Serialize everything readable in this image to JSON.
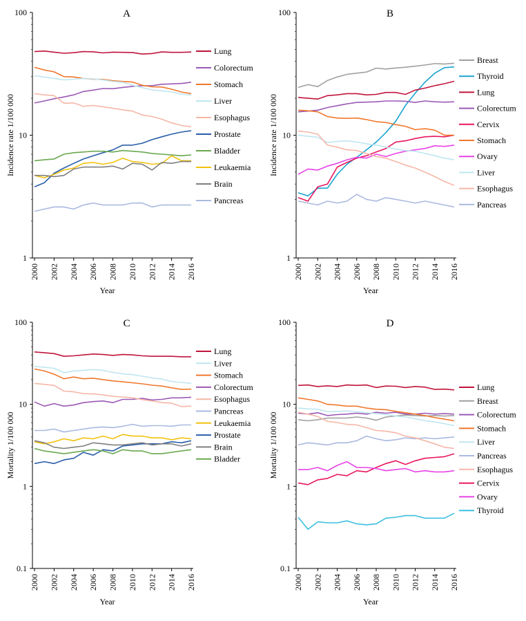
{
  "chart_data": [
    {
      "panel": "A",
      "type": "line",
      "title": "A",
      "xlabel": "Year",
      "ylabel": "Incidence rate 1/100 000",
      "yscale": "log",
      "ylim": [
        1,
        100
      ],
      "yticks": [
        "1",
        "10",
        "100"
      ],
      "xticks": [
        "2000",
        "2002",
        "2004",
        "2006",
        "2008",
        "2010",
        "2012",
        "2014",
        "2016"
      ],
      "legend_position": "right",
      "grid": false,
      "x": [
        2000,
        2001,
        2002,
        2003,
        2004,
        2005,
        2006,
        2007,
        2008,
        2009,
        2010,
        2011,
        2012,
        2013,
        2014,
        2015,
        2016
      ],
      "series": [
        {
          "name": "Lung",
          "color": "#c0143c",
          "values": [
            48,
            48.5,
            47.5,
            46.5,
            47,
            48,
            47.8,
            46.8,
            47.5,
            47.3,
            47.2,
            45.8,
            46.3,
            47.7,
            47.3,
            47.3,
            47.6
          ]
        },
        {
          "name": "Colorectum",
          "color": "#9b59b6",
          "values": [
            18.3,
            19,
            19.8,
            20.5,
            21.3,
            22.7,
            23.3,
            24,
            23.9,
            24.5,
            25,
            25.3,
            25.3,
            26,
            26.2,
            26.4,
            27
          ]
        },
        {
          "name": "Stomach",
          "color": "#f0782e",
          "values": [
            35.7,
            34,
            32.8,
            30,
            29.8,
            29,
            28.6,
            28.5,
            27.8,
            27.4,
            27.1,
            25.5,
            24.8,
            24.7,
            23.7,
            22.5,
            21.8
          ]
        },
        {
          "name": "Liver",
          "color": "#bfe6ef",
          "values": [
            30.5,
            29.8,
            29,
            28.2,
            28.6,
            29,
            28.8,
            28.2,
            27.4,
            27,
            25.5,
            24.4,
            23.4,
            23,
            22.5,
            21.6,
            21.2
          ]
        },
        {
          "name": "Esophagus",
          "color": "#f5b7a8",
          "values": [
            21.8,
            21.3,
            21,
            18.2,
            18.3,
            17.2,
            17.5,
            17,
            16.6,
            16.1,
            15.7,
            14.6,
            14.2,
            13.5,
            12.6,
            12,
            11.7
          ]
        },
        {
          "name": "Prostate",
          "color": "#2a5ea8",
          "values": [
            3.8,
            4.1,
            4.9,
            5.4,
            5.9,
            6.4,
            6.8,
            7.2,
            7.6,
            8.3,
            8.3,
            8.6,
            9.2,
            9.7,
            10.2,
            10.6,
            10.9
          ]
        },
        {
          "name": "Bladder",
          "color": "#6aa84f",
          "values": [
            6.2,
            6.3,
            6.4,
            7,
            7.2,
            7.3,
            7.4,
            7.4,
            7.3,
            7.5,
            7.4,
            7.3,
            7.1,
            7,
            6.9,
            6.8,
            6.9
          ]
        },
        {
          "name": "Leukaemia",
          "color": "#f2c10e",
          "values": [
            4.7,
            4.5,
            4.8,
            5.2,
            5.4,
            5.9,
            6,
            5.8,
            6,
            6.5,
            6.1,
            6,
            5.8,
            5.9,
            6.8,
            6.2,
            6.2
          ]
        },
        {
          "name": "Brain",
          "color": "#7f7f7f",
          "values": [
            4.7,
            4.7,
            4.6,
            4.7,
            5.3,
            5.5,
            5.5,
            5.5,
            5.6,
            5.3,
            5.9,
            5.8,
            5.2,
            6,
            5.9,
            6.1,
            6.1
          ]
        },
        {
          "name": "Pancreas",
          "color": "#aab9e0",
          "values": [
            2.4,
            2.5,
            2.6,
            2.6,
            2.5,
            2.7,
            2.8,
            2.7,
            2.7,
            2.7,
            2.8,
            2.8,
            2.6,
            2.7,
            2.7,
            2.7,
            2.7
          ]
        }
      ]
    },
    {
      "panel": "B",
      "type": "line",
      "title": "B",
      "xlabel": "Year",
      "ylabel": "Incidence rate 1/100 000",
      "yscale": "log",
      "ylim": [
        1,
        100
      ],
      "yticks": [
        "1",
        "10",
        "100"
      ],
      "xticks": [
        "2000",
        "2002",
        "2004",
        "2006",
        "2008",
        "2010",
        "2012",
        "2014",
        "2016"
      ],
      "legend_position": "right",
      "grid": false,
      "x": [
        2000,
        2001,
        2002,
        2003,
        2004,
        2005,
        2006,
        2007,
        2008,
        2009,
        2010,
        2011,
        2012,
        2013,
        2014,
        2015,
        2016
      ],
      "series": [
        {
          "name": "Breast",
          "color": "#a0a0a0",
          "values": [
            24.5,
            25.8,
            24.9,
            27.9,
            29.8,
            31.3,
            32,
            32.7,
            35.2,
            34.6,
            35.3,
            35.8,
            36.5,
            37.3,
            38.3,
            38,
            38.6
          ]
        },
        {
          "name": "Thyroid",
          "color": "#1aa3d1",
          "values": [
            3.4,
            3.2,
            3.7,
            3.7,
            4.8,
            5.8,
            6.6,
            7.6,
            8.8,
            10.5,
            13,
            17.5,
            22,
            27,
            32,
            35.5,
            36
          ]
        },
        {
          "name": "Lung",
          "color": "#c0143c",
          "values": [
            20.3,
            20,
            19.7,
            21,
            21.3,
            21.8,
            21.8,
            21.3,
            21.5,
            22.3,
            22.3,
            21.5,
            23.3,
            24.2,
            25.3,
            26.3,
            27.5
          ]
        },
        {
          "name": "Colorectum",
          "color": "#9b59b6",
          "values": [
            15.5,
            15.7,
            16,
            16.8,
            17.4,
            18,
            18.5,
            18.6,
            18.7,
            19,
            19,
            18.9,
            18.5,
            19,
            18.7,
            18.6,
            18.7
          ]
        },
        {
          "name": "Cervix",
          "color": "#e8175d",
          "values": [
            3.1,
            2.9,
            3.8,
            4,
            5.5,
            6,
            6.5,
            6.8,
            7.3,
            7.8,
            8.8,
            9,
            9.4,
            9.7,
            9.8,
            9.7,
            10
          ]
        },
        {
          "name": "Stomach",
          "color": "#f0782e",
          "values": [
            16,
            15.8,
            15.5,
            14.2,
            13.8,
            13.7,
            13.8,
            13.4,
            12.9,
            12.7,
            12.2,
            11.8,
            11.1,
            11.3,
            11,
            10,
            10
          ]
        },
        {
          "name": "Ovary",
          "color": "#e842e6",
          "values": [
            4.8,
            5.3,
            5.2,
            5.6,
            5.9,
            6.3,
            6.6,
            6.5,
            7,
            6.7,
            7.1,
            7.4,
            7.6,
            7.8,
            8.2,
            8.1,
            8.3
          ]
        },
        {
          "name": "Liver",
          "color": "#bfe6ef",
          "values": [
            10,
            9.8,
            9.6,
            8.7,
            8.9,
            9,
            8.8,
            8.5,
            8.3,
            8,
            7.7,
            7.5,
            7.4,
            7.1,
            6.8,
            6.5,
            6.3
          ]
        },
        {
          "name": "Esophagus",
          "color": "#f5b7a8",
          "values": [
            10.8,
            10.6,
            10.2,
            8.3,
            8,
            7.6,
            7.5,
            7.1,
            6.7,
            6.5,
            6.1,
            5.7,
            5.4,
            5,
            4.6,
            4.2,
            3.9
          ]
        },
        {
          "name": "Pancreas",
          "color": "#aab9e0",
          "values": [
            2.9,
            2.8,
            2.7,
            2.9,
            2.8,
            2.9,
            3.3,
            3,
            2.9,
            3.1,
            3,
            2.9,
            2.8,
            2.9,
            2.8,
            2.7,
            2.6
          ]
        }
      ]
    },
    {
      "panel": "C",
      "type": "line",
      "title": "C",
      "xlabel": "Year",
      "ylabel": "Mortality 1/100 000",
      "yscale": "log",
      "ylim": [
        0.1,
        100
      ],
      "yticks": [
        "0.1",
        "1",
        "10",
        "100"
      ],
      "xticks": [
        "2000",
        "2002",
        "2004",
        "2006",
        "2008",
        "2010",
        "2012",
        "2014",
        "2016"
      ],
      "legend_position": "right",
      "grid": false,
      "x": [
        2000,
        2001,
        2002,
        2003,
        2004,
        2005,
        2006,
        2007,
        2008,
        2009,
        2010,
        2011,
        2012,
        2013,
        2014,
        2015,
        2016
      ],
      "series": [
        {
          "name": "Lung",
          "color": "#c0143c",
          "values": [
            43.5,
            42.5,
            41.5,
            38.5,
            39,
            40,
            41,
            40.5,
            39.5,
            40.5,
            40,
            39,
            38.5,
            38.5,
            38.5,
            38,
            38
          ]
        },
        {
          "name": "Liver",
          "color": "#bfe6ef",
          "values": [
            29,
            28.3,
            27.5,
            24.3,
            25.5,
            26,
            26.5,
            25.9,
            24.5,
            23.5,
            23,
            22,
            21,
            20.3,
            19,
            18.5,
            18
          ]
        },
        {
          "name": "Stomach",
          "color": "#f0782e",
          "values": [
            27,
            25.5,
            23.3,
            20.5,
            21.5,
            20.5,
            20.8,
            20,
            19.3,
            18.8,
            18.3,
            17.8,
            17.1,
            16.7,
            15.9,
            15.2,
            15.3
          ]
        },
        {
          "name": "Colorectum",
          "color": "#9b59b6",
          "values": [
            10.7,
            9.5,
            10.2,
            9.5,
            9.8,
            10.5,
            10.8,
            11,
            10.5,
            11.5,
            11.5,
            11.8,
            11.3,
            11.5,
            12,
            12,
            12.2
          ]
        },
        {
          "name": "Esophagus",
          "color": "#f5b7a8",
          "values": [
            18,
            17.5,
            17,
            14.5,
            14.2,
            13.5,
            13.4,
            13,
            12.5,
            12.3,
            12,
            11.4,
            11,
            10.5,
            10.3,
            9.4,
            9.5
          ]
        },
        {
          "name": "Pancreas",
          "color": "#aab9e0",
          "values": [
            4.8,
            4.8,
            5,
            4.6,
            4.8,
            5,
            5.2,
            5.3,
            5.2,
            5.4,
            5.7,
            5.4,
            5.5,
            5.5,
            5.4,
            5.6,
            5.6
          ]
        },
        {
          "name": "Leukaemia",
          "color": "#f2c10e",
          "values": [
            3.5,
            3.3,
            3.5,
            3.8,
            3.6,
            3.9,
            3.8,
            4.1,
            3.8,
            4.3,
            4.1,
            4.1,
            3.9,
            3.9,
            3.7,
            3.9,
            3.8
          ]
        },
        {
          "name": "Prostate",
          "color": "#2a5ea8",
          "values": [
            1.9,
            2,
            1.9,
            2.1,
            2.2,
            2.6,
            2.4,
            2.8,
            2.7,
            3.1,
            3.2,
            3.3,
            3.3,
            3.3,
            3.5,
            3.4,
            3.6
          ]
        },
        {
          "name": "Brain",
          "color": "#7f7f7f",
          "values": [
            3.6,
            3.4,
            3,
            2.9,
            3,
            3.1,
            3.4,
            3.3,
            3.2,
            3.2,
            3.3,
            3.4,
            3.2,
            3.3,
            3.3,
            3.1,
            3.3
          ]
        },
        {
          "name": "Bladder",
          "color": "#6aa84f",
          "values": [
            2.9,
            2.7,
            2.6,
            2.5,
            2.6,
            2.7,
            2.8,
            2.7,
            2.5,
            2.8,
            2.7,
            2.7,
            2.5,
            2.5,
            2.6,
            2.7,
            2.8
          ]
        }
      ]
    },
    {
      "panel": "D",
      "type": "line",
      "title": "D",
      "xlabel": "Year",
      "ylabel": "Mortality 1/100 000",
      "yscale": "log",
      "ylim": [
        0.1,
        100
      ],
      "yticks": [
        "0.1",
        "1",
        "10",
        "100"
      ],
      "xticks": [
        "2000",
        "2002",
        "2004",
        "2006",
        "2008",
        "2010",
        "2012",
        "2014",
        "2016"
      ],
      "legend_position": "right",
      "grid": false,
      "x": [
        2000,
        2001,
        2002,
        2003,
        2004,
        2005,
        2006,
        2007,
        2008,
        2009,
        2010,
        2011,
        2012,
        2013,
        2014,
        2015,
        2016
      ],
      "series": [
        {
          "name": "Lung",
          "color": "#c0143c",
          "values": [
            17,
            17.2,
            16.5,
            16.8,
            16.5,
            17.2,
            17,
            17.2,
            16,
            16.7,
            16.6,
            16,
            16.5,
            16.2,
            15.2,
            15.3,
            15
          ]
        },
        {
          "name": "Breast",
          "color": "#a0a0a0",
          "values": [
            6.5,
            6.3,
            6.5,
            6.8,
            6.8,
            6.8,
            7,
            6.8,
            6.4,
            7,
            7.2,
            7.4,
            7.3,
            7.2,
            7.3,
            7.2,
            7.3
          ]
        },
        {
          "name": "Colorectum",
          "color": "#9b59b6",
          "values": [
            7.8,
            7.6,
            7.9,
            7.3,
            7.5,
            7.6,
            7.8,
            7.6,
            8,
            7.8,
            8,
            7.6,
            7.6,
            7.8,
            7.6,
            7.7,
            7.6
          ]
        },
        {
          "name": "Stomach",
          "color": "#f0782e",
          "values": [
            12,
            11.5,
            11,
            10,
            9.8,
            9.5,
            9.5,
            9,
            8.7,
            8.6,
            8.2,
            7.9,
            7.6,
            7.3,
            6.9,
            6.6,
            6.3
          ]
        },
        {
          "name": "Liver",
          "color": "#bfe6ef",
          "values": [
            9,
            8.8,
            8.7,
            8.1,
            8.2,
            8.3,
            8.1,
            7.9,
            7.7,
            7.5,
            7.2,
            7,
            6.7,
            6.3,
            6.1,
            5.8,
            5.5
          ]
        },
        {
          "name": "Pancreas",
          "color": "#aab9e0",
          "values": [
            3.2,
            3.4,
            3.3,
            3.2,
            3.4,
            3.4,
            3.6,
            4.1,
            3.8,
            3.6,
            3.7,
            3.9,
            3.8,
            3.9,
            3.8,
            3.9,
            4
          ]
        },
        {
          "name": "Esophagus",
          "color": "#f5b7a8",
          "values": [
            8,
            7.6,
            7.1,
            6.2,
            6,
            5.7,
            5.6,
            5.2,
            4.8,
            4.7,
            4.5,
            4.1,
            3.9,
            3.6,
            3.3,
            3,
            2.9
          ]
        },
        {
          "name": "Cervix",
          "color": "#e8175d",
          "values": [
            1.1,
            1.05,
            1.2,
            1.25,
            1.4,
            1.35,
            1.55,
            1.5,
            1.7,
            1.9,
            2.05,
            1.85,
            2.05,
            2.2,
            2.25,
            2.3,
            2.5
          ]
        },
        {
          "name": "Ovary",
          "color": "#e842e6",
          "values": [
            1.6,
            1.6,
            1.7,
            1.55,
            1.8,
            2,
            1.7,
            1.7,
            1.65,
            1.55,
            1.6,
            1.65,
            1.5,
            1.55,
            1.5,
            1.5,
            1.55
          ]
        },
        {
          "name": "Thyroid",
          "color": "#3cbfe0",
          "values": [
            0.42,
            0.3,
            0.37,
            0.36,
            0.36,
            0.38,
            0.35,
            0.34,
            0.35,
            0.41,
            0.42,
            0.44,
            0.44,
            0.41,
            0.41,
            0.41,
            0.47
          ]
        }
      ]
    }
  ]
}
